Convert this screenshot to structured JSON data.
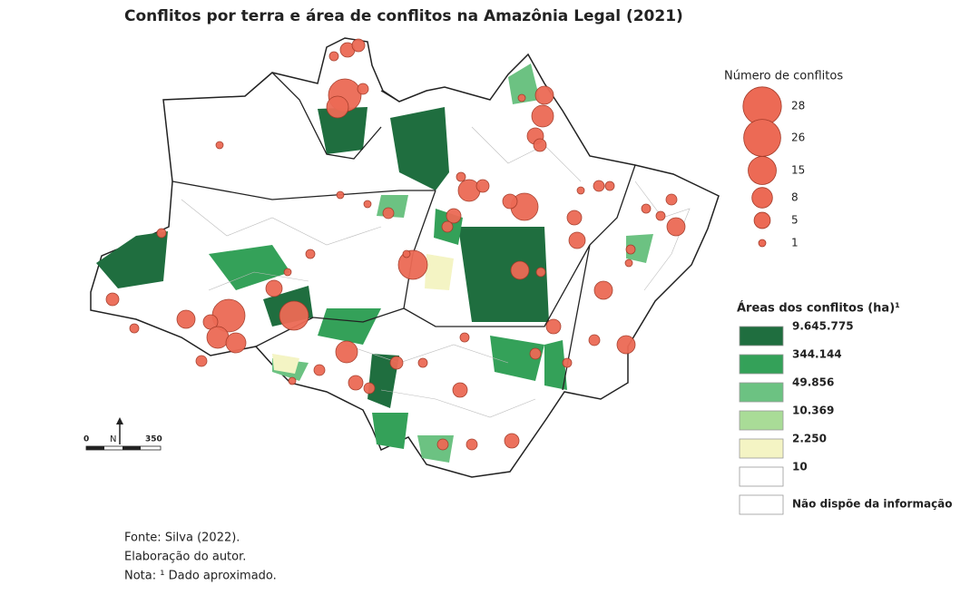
{
  "title": "Conflitos por terra e área de conflitos na Amazônia Legal (2021)",
  "bubble_legend": {
    "title": "Número de conflitos",
    "values": [
      28,
      26,
      15,
      8,
      5,
      1
    ],
    "color": "#ec6a55"
  },
  "area_legend": {
    "title": "Áreas dos conflitos (ha)¹",
    "items": [
      {
        "label": "9.645.775",
        "color": "#1f6e3f"
      },
      {
        "label": "344.144",
        "color": "#34a159"
      },
      {
        "label": "49.856",
        "color": "#6cc282"
      },
      {
        "label": "10.369",
        "color": "#a9dc97"
      },
      {
        "label": "2.250",
        "color": "#f4f4c4"
      },
      {
        "label": "10",
        "color": "#ffffff"
      },
      {
        "label": "Não dispõe da informação",
        "color": "#ffffff"
      }
    ]
  },
  "scale": {
    "start": 0,
    "north": "N",
    "end": 350
  },
  "notes": [
    "Fonte: Silva (2022).",
    "Elaboração do autor.",
    "Nota: ¹ Dado aproximado."
  ]
}
